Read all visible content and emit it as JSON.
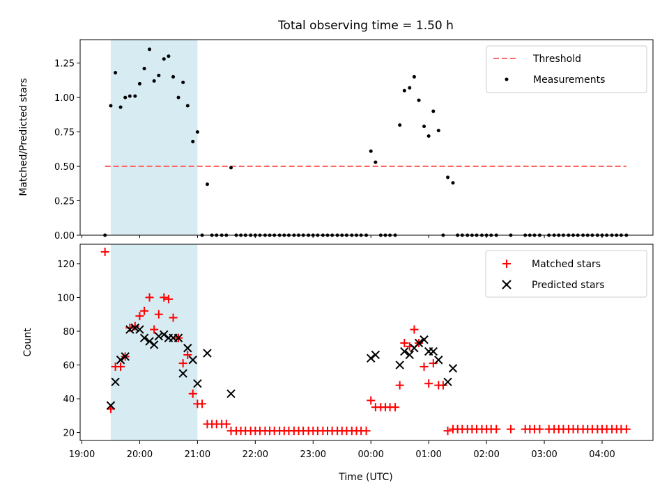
{
  "chart_data": [
    {
      "type": "scatter",
      "title": "Total observing time = 1.50 h",
      "xlabel": "",
      "ylabel": "Matched/Predicted stars",
      "ylim": [
        0,
        1.42
      ],
      "yticks": [
        "0.00",
        "0.25",
        "0.50",
        "0.75",
        "1.00",
        "1.25"
      ],
      "ytick_values": [
        0,
        0.25,
        0.5,
        0.75,
        1.0,
        1.25
      ],
      "shaded_span": {
        "x_start": 19.5,
        "x_end": 21.0,
        "color": "#add8e6"
      },
      "threshold": {
        "name": "Threshold",
        "value": 0.5,
        "x_start": 19.4,
        "x_end": 28.42,
        "color": "#ff6666"
      },
      "legend": [
        "Threshold",
        "Measurements"
      ],
      "legend_position": "top-right",
      "series": [
        {
          "name": "Measurements",
          "color": "#000000",
          "x": [
            19.4,
            19.5,
            19.58,
            19.67,
            19.75,
            19.83,
            19.92,
            20.0,
            20.08,
            20.17,
            20.25,
            20.33,
            20.42,
            20.5,
            20.58,
            20.67,
            20.75,
            20.83,
            20.92,
            21.0,
            21.08,
            21.17,
            21.25,
            21.33,
            21.42,
            21.5,
            21.58,
            21.67,
            21.75,
            21.83,
            21.92,
            22.0,
            22.08,
            22.17,
            22.25,
            22.33,
            22.42,
            22.5,
            22.58,
            22.67,
            22.75,
            22.83,
            22.92,
            23.0,
            23.08,
            23.17,
            23.25,
            23.33,
            23.42,
            23.5,
            23.58,
            23.67,
            23.75,
            23.83,
            23.92,
            24.0,
            24.08,
            24.17,
            24.25,
            24.33,
            24.42,
            24.5,
            24.58,
            24.67,
            24.75,
            24.83,
            24.92,
            25.0,
            25.08,
            25.17,
            25.25,
            25.33,
            25.42,
            25.5,
            25.58,
            25.67,
            25.75,
            25.83,
            25.92,
            26.0,
            26.08,
            26.17,
            26.42,
            26.67,
            26.75,
            26.83,
            26.92,
            27.08,
            27.17,
            27.25,
            27.33,
            27.42,
            27.5,
            27.58,
            27.67,
            27.75,
            27.83,
            27.92,
            28.0,
            28.08,
            28.17,
            28.25,
            28.33,
            28.42
          ],
          "y": [
            0,
            0.94,
            1.18,
            0.93,
            1.0,
            1.01,
            1.01,
            1.1,
            1.21,
            1.35,
            1.12,
            1.16,
            1.28,
            1.3,
            1.15,
            1.0,
            1.11,
            0.94,
            0.68,
            0.75,
            0,
            0.37,
            0,
            0,
            0,
            0,
            0.49,
            0,
            0,
            0,
            0,
            0,
            0,
            0,
            0,
            0,
            0,
            0,
            0,
            0,
            0,
            0,
            0,
            0,
            0,
            0,
            0,
            0,
            0,
            0,
            0,
            0,
            0,
            0,
            0,
            0.61,
            0.53,
            0,
            0,
            0,
            0,
            0.8,
            1.05,
            1.07,
            1.15,
            0.98,
            0.79,
            0.72,
            0.9,
            0.76,
            0,
            0.42,
            0.38,
            0,
            0,
            0,
            0,
            0,
            0,
            0,
            0,
            0,
            0,
            0,
            0,
            0,
            0,
            0,
            0,
            0,
            0,
            0,
            0,
            0,
            0,
            0,
            0,
            0,
            0,
            0,
            0,
            0,
            0,
            0
          ]
        }
      ]
    },
    {
      "type": "scatter",
      "title": "",
      "xlabel": "Time (UTC)",
      "ylabel": "Count",
      "ylim": [
        15.3,
        131.5
      ],
      "yticks": [
        "20",
        "40",
        "60",
        "80",
        "100",
        "120"
      ],
      "ytick_values": [
        20,
        40,
        60,
        80,
        100,
        120
      ],
      "xlim": [
        18.97,
        28.88
      ],
      "xticks": [
        "19:00",
        "20:00",
        "21:00",
        "22:00",
        "23:00",
        "00:00",
        "01:00",
        "02:00",
        "03:00",
        "04:00"
      ],
      "xtick_values": [
        19,
        20,
        21,
        22,
        23,
        24,
        25,
        26,
        27,
        28
      ],
      "shaded_span": {
        "x_start": 19.5,
        "x_end": 21.0,
        "color": "#add8e6"
      },
      "legend": [
        "Matched stars",
        "Predicted stars"
      ],
      "legend_position": "top-right",
      "series": [
        {
          "name": "Matched stars",
          "marker": "plus",
          "color": "#ff0000",
          "x": [
            19.4,
            19.5,
            19.58,
            19.67,
            19.75,
            19.83,
            19.92,
            20.0,
            20.08,
            20.17,
            20.25,
            20.33,
            20.42,
            20.5,
            20.58,
            20.67,
            20.75,
            20.83,
            20.92,
            21.0,
            21.08,
            21.17,
            21.25,
            21.33,
            21.42,
            21.5,
            21.58,
            21.67,
            21.75,
            21.83,
            21.92,
            22.0,
            22.08,
            22.17,
            22.25,
            22.33,
            22.42,
            22.5,
            22.58,
            22.67,
            22.75,
            22.83,
            22.92,
            23.0,
            23.08,
            23.17,
            23.25,
            23.33,
            23.42,
            23.5,
            23.58,
            23.67,
            23.75,
            23.83,
            23.92,
            24.0,
            24.08,
            24.17,
            24.25,
            24.33,
            24.42,
            24.5,
            24.58,
            24.67,
            24.75,
            24.83,
            24.92,
            25.0,
            25.08,
            25.17,
            25.25,
            25.33,
            25.42,
            25.5,
            25.58,
            25.67,
            25.75,
            25.83,
            25.92,
            26.0,
            26.08,
            26.17,
            26.42,
            26.67,
            26.75,
            26.83,
            26.92,
            27.08,
            27.17,
            27.25,
            27.33,
            27.42,
            27.5,
            27.58,
            27.67,
            27.75,
            27.83,
            27.92,
            28.0,
            28.08,
            28.17,
            28.25,
            28.33,
            28.42
          ],
          "y": [
            127,
            34,
            59,
            59,
            65,
            82,
            83,
            89,
            92,
            100,
            81,
            90,
            100,
            99,
            88,
            76,
            61,
            66,
            43,
            37,
            37,
            25,
            25,
            25,
            25,
            25,
            21,
            21,
            21,
            21,
            21,
            21,
            21,
            21,
            21,
            21,
            21,
            21,
            21,
            21,
            21,
            21,
            21,
            21,
            21,
            21,
            21,
            21,
            21,
            21,
            21,
            21,
            21,
            21,
            21,
            39,
            35,
            35,
            35,
            35,
            35,
            48,
            73,
            71,
            81,
            73,
            59,
            49,
            61,
            48,
            48,
            21,
            22,
            22,
            22,
            22,
            22,
            22,
            22,
            22,
            22,
            22,
            22,
            22,
            22,
            22,
            22,
            22,
            22,
            22,
            22,
            22,
            22,
            22,
            22,
            22,
            22,
            22,
            22,
            22,
            22,
            22,
            22,
            22
          ]
        },
        {
          "name": "Predicted stars",
          "marker": "x",
          "color": "#000000",
          "x": [
            19.5,
            19.58,
            19.67,
            19.75,
            19.83,
            19.92,
            20.0,
            20.08,
            20.17,
            20.25,
            20.33,
            20.42,
            20.5,
            20.58,
            20.67,
            20.75,
            20.83,
            20.92,
            21.0,
            21.17,
            21.58,
            24.0,
            24.08,
            24.5,
            24.58,
            24.67,
            24.75,
            24.83,
            24.92,
            25.0,
            25.08,
            25.17,
            25.33,
            25.42
          ],
          "y": [
            36,
            50,
            63,
            65,
            81,
            82,
            81,
            76,
            74,
            72,
            77,
            78,
            76,
            76,
            76,
            55,
            70,
            63,
            49,
            67,
            43,
            64,
            66,
            60,
            68,
            66,
            70,
            73,
            75,
            68,
            68,
            63,
            50,
            58
          ]
        }
      ]
    }
  ]
}
